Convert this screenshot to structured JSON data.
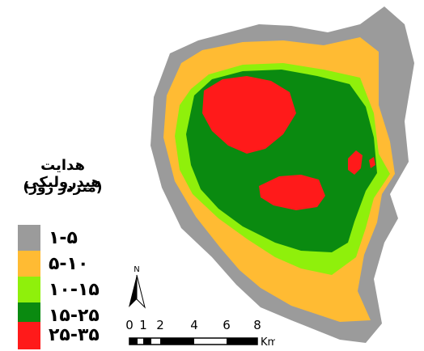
{
  "legend": {
    "title": "هدایت هیدرولیکی",
    "subtitle": "(متردر روز)",
    "items": [
      {
        "label": "۱-۵",
        "color": "#9b9b9b"
      },
      {
        "label": "۵-۱۰",
        "color": "#ffbb33"
      },
      {
        "label": "۱۰-۱۵",
        "color": "#8ff00b"
      },
      {
        "label": "۱۵-۲۵",
        "color": "#0a8a10"
      },
      {
        "label": "۲۵-۳۵",
        "color": "#ff1a1a"
      }
    ]
  },
  "north_arrow": {
    "label": "N"
  },
  "scale_bar": {
    "ticks": [
      "0",
      "1",
      "2",
      "4",
      "6",
      "8"
    ],
    "unit": "Km"
  }
}
